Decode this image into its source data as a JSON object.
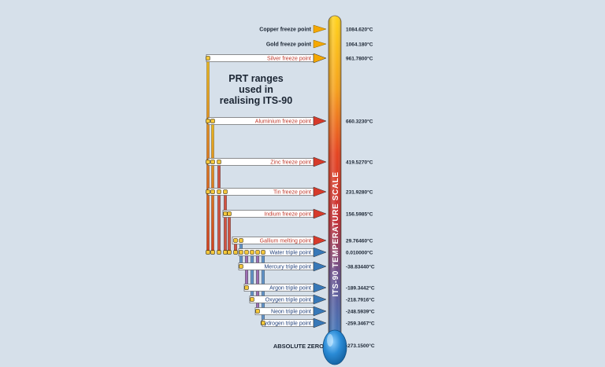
{
  "title_lines": [
    "PRT ranges",
    "used in",
    "realising ITS-90"
  ],
  "scale_label": "ITS-90 TEMPERATURE SCALE",
  "absolute_zero": {
    "label": "ABSOLUTE ZERO",
    "value": "-273.1500°C"
  },
  "colors": {
    "background": "#d6e0ea",
    "hot": "#f5a800",
    "warm": "#e8c22e",
    "red": "#d63a2a",
    "blue": "#3778b8",
    "cold_text": "#1f3f7a",
    "warm_text": "#c0392b",
    "bulb": "#2a8bd6"
  },
  "fixed_points": [
    {
      "name": "Copper freeze point",
      "temp": "1084.620°C",
      "style": "plain-gold"
    },
    {
      "name": "Gold freeze point",
      "temp": "1064.180°C",
      "style": "plain-gold"
    },
    {
      "name": "Silver freeze point",
      "temp": "961.7800°C",
      "style": "box-gold"
    },
    {
      "name": "Aluminium freeze point",
      "temp": "660.3230°C",
      "style": "box-red"
    },
    {
      "name": "Zinc freeze point",
      "temp": "419.5270°C",
      "style": "box-red"
    },
    {
      "name": "Tin freeze point",
      "temp": "231.9280°C",
      "style": "box-red"
    },
    {
      "name": "Indium freeze point",
      "temp": "156.5985°C",
      "style": "box-red"
    },
    {
      "name": "Gallium melting point",
      "temp": "29.76460°C",
      "style": "box-red"
    },
    {
      "name": "Water triple point",
      "temp": "0.010000°C",
      "style": "box-blue"
    },
    {
      "name": "Mercury triple point",
      "temp": "-38.83440°C",
      "style": "box-blue"
    },
    {
      "name": "Argon triple point",
      "temp": "-189.3442°C",
      "style": "box-blue"
    },
    {
      "name": "Oxygen triple point",
      "temp": "-218.7916°C",
      "style": "box-blue"
    },
    {
      "name": "Neon triple point",
      "temp": "-248.5939°C",
      "style": "box-blue"
    },
    {
      "name": "Hydrogen  triple point",
      "temp": "-259.3467°C",
      "style": "box-blue"
    }
  ]
}
